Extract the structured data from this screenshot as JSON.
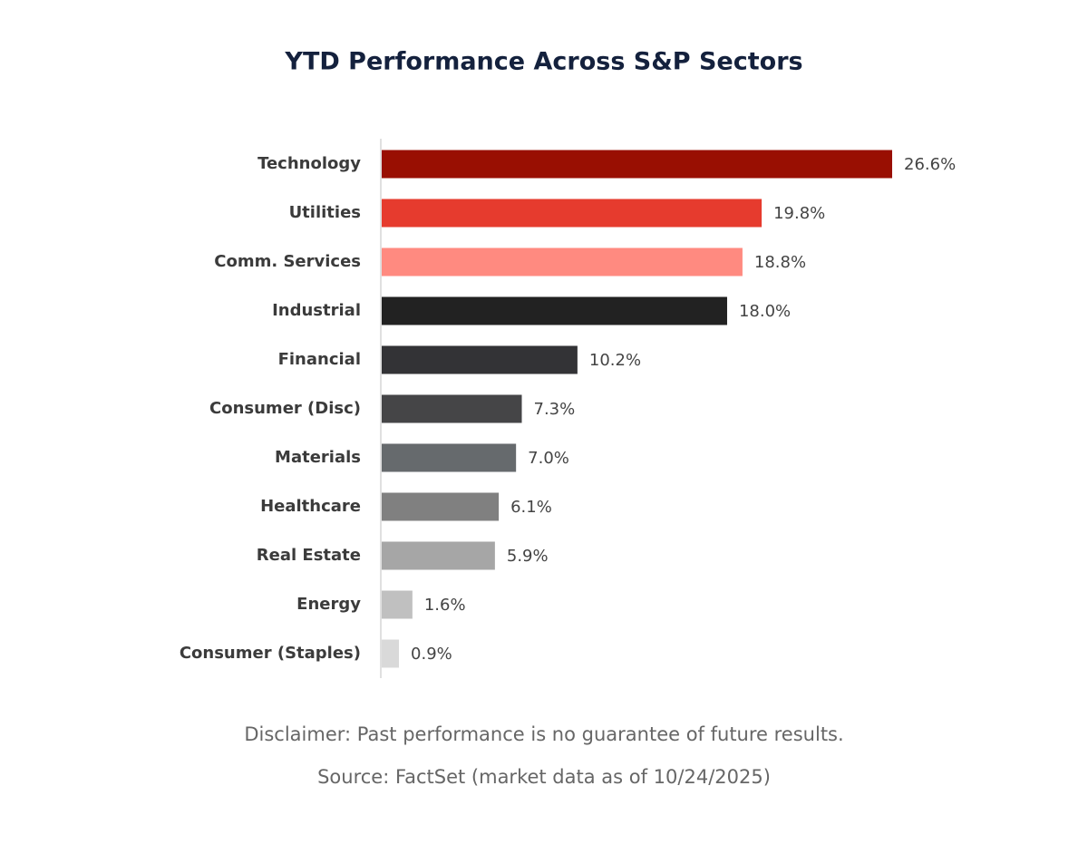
{
  "chart_data": {
    "type": "bar",
    "orientation": "horizontal",
    "title": "YTD Performance Across S&P Sectors",
    "categories": [
      "Technology",
      "Utilities",
      "Comm. Services",
      "Industrial",
      "Financial",
      "Consumer (Disc)",
      "Materials",
      "Healthcare",
      "Real Estate",
      "Energy",
      "Consumer (Staples)"
    ],
    "values": [
      26.6,
      19.8,
      18.8,
      18.0,
      10.2,
      7.3,
      7.0,
      6.1,
      5.9,
      1.6,
      0.9
    ],
    "value_labels": [
      "26.6%",
      "19.8%",
      "18.8%",
      "18.0%",
      "10.2%",
      "7.3%",
      "7.0%",
      "6.1%",
      "5.9%",
      "1.6%",
      "0.9%"
    ],
    "colors": [
      "#990f02",
      "#e63b2e",
      "#ff8a80",
      "#222222",
      "#333336",
      "#454547",
      "#666a6d",
      "#808080",
      "#a6a6a6",
      "#c0c0c0",
      "#d9d9d9"
    ],
    "notes": [
      "Disclaimer: Past performance is no guarantee of future results.",
      "Source: FactSet (market data as of 10/24/2025)"
    ]
  }
}
